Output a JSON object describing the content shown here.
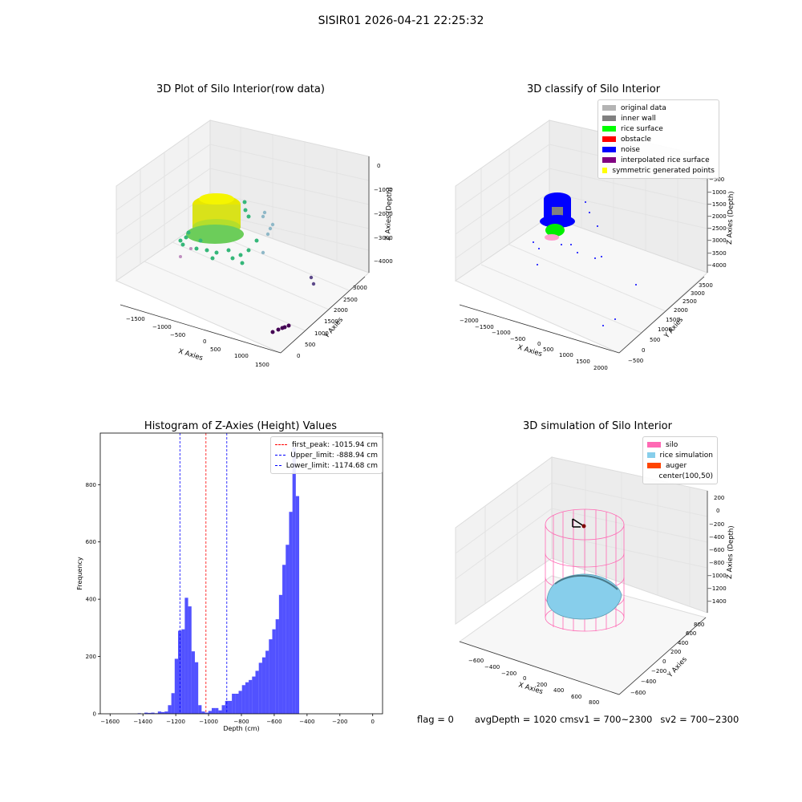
{
  "suptitle": "SISIR01 2026-04-21 22:25:32",
  "panels": {
    "raw": {
      "title": "3D Plot of Silo Interior(row data)",
      "xlabel": "X Axies",
      "ylabel": "Y Axies",
      "zlabel": "Z Axies (Depth)",
      "xticks": [
        "−1500",
        "−1000",
        "−500",
        "0",
        "500",
        "1000",
        "1500"
      ],
      "yticks": [
        "0",
        "500",
        "1000",
        "1500",
        "2000",
        "2500",
        "3000"
      ],
      "zticks": [
        "0",
        "−1000",
        "−2000",
        "−3000",
        "−4000"
      ]
    },
    "classify": {
      "title": "3D classify of Silo Interior",
      "xlabel": "X Axies",
      "ylabel": "Y Axies",
      "zlabel": "Z Axies (Depth)",
      "xticks": [
        "−2000",
        "−1500",
        "−1000",
        "−500",
        "0",
        "500",
        "1000",
        "1500",
        "2000"
      ],
      "yticks": [
        "−500",
        "0",
        "500",
        "1000",
        "1500",
        "2000",
        "2500",
        "3000",
        "3500"
      ],
      "zticks": [
        "−500",
        "−1000",
        "−1500",
        "−2000",
        "−2500",
        "−3000",
        "−3500",
        "−4000"
      ],
      "legend": [
        {
          "label": "original data",
          "color": "#b4b4b4"
        },
        {
          "label": "inner wall",
          "color": "#808080"
        },
        {
          "label": "rice surface",
          "color": "#00ff00"
        },
        {
          "label": "obstacle",
          "color": "#ff0000"
        },
        {
          "label": "noise",
          "color": "#0000ff"
        },
        {
          "label": "interpolated rice surface",
          "color": "#800080"
        },
        {
          "label": "symmetric generated points",
          "color": "#ffff00"
        }
      ]
    },
    "simulation": {
      "title": "3D simulation of Silo Interior",
      "xlabel": "X Axies",
      "ylabel": "Y Axies",
      "zlabel": "Z Axies (Depth)",
      "xticks": [
        "−600",
        "−400",
        "−200",
        "0",
        "200",
        "400",
        "600",
        "800"
      ],
      "yticks": [
        "−600",
        "−400",
        "−200",
        "0",
        "200",
        "400",
        "600",
        "800"
      ],
      "zticks": [
        "200",
        "0",
        "−200",
        "−400",
        "−600",
        "−800",
        "−1000",
        "−1200",
        "−1400"
      ],
      "legend": [
        {
          "label": "silo",
          "color": "#ff69b4"
        },
        {
          "label": "rice simulation",
          "color": "#87ceeb"
        },
        {
          "label": "auger",
          "color": "#ff4500"
        },
        {
          "label": "center(100,50)",
          "color": "none"
        }
      ]
    }
  },
  "chart_data": {
    "type": "bar",
    "title": "Histogram of Z-Axies (Height) Values",
    "xlabel": "Depth (cm)",
    "ylabel": "Frequency",
    "xlim": [
      -1660,
      60
    ],
    "ylim": [
      0,
      980
    ],
    "xticks": [
      -1600,
      -1400,
      -1200,
      -1000,
      -800,
      -600,
      -400,
      -200,
      0
    ],
    "xtick_labels": [
      "−1600",
      "−1400",
      "−1200",
      "−1000",
      "−800",
      "−600",
      "−400",
      "−200",
      "0"
    ],
    "yticks": [
      0,
      200,
      400,
      600,
      800
    ],
    "bar_color": "#0000ff",
    "bin_width": 20.5,
    "bin_edges_start": -1432,
    "values": [
      2,
      0,
      4,
      3,
      4,
      2,
      8,
      6,
      8,
      30,
      72,
      192,
      290,
      295,
      405,
      375,
      218,
      180,
      30,
      8,
      4,
      10,
      20,
      20,
      12,
      30,
      45,
      45,
      70,
      70,
      80,
      100,
      110,
      118,
      130,
      150,
      178,
      197,
      220,
      260,
      295,
      330,
      415,
      520,
      590,
      705,
      930,
      760
    ],
    "vlines": [
      {
        "label": "first_peak: -1015.94 cm",
        "x": -1015.94,
        "color": "#ff0000"
      },
      {
        "label": "Upper_limit: -888.94 cm",
        "x": -888.94,
        "color": "#0000ff"
      },
      {
        "label": "Lower_limit: -1174.68 cm",
        "x": -1174.68,
        "color": "#0000ff"
      }
    ]
  },
  "status": {
    "flag": "flag = 0",
    "avg": "avgDepth = 1020 cm",
    "sv1": "sv1 = 700~2300",
    "sv2": "sv2 = 700~2300"
  }
}
